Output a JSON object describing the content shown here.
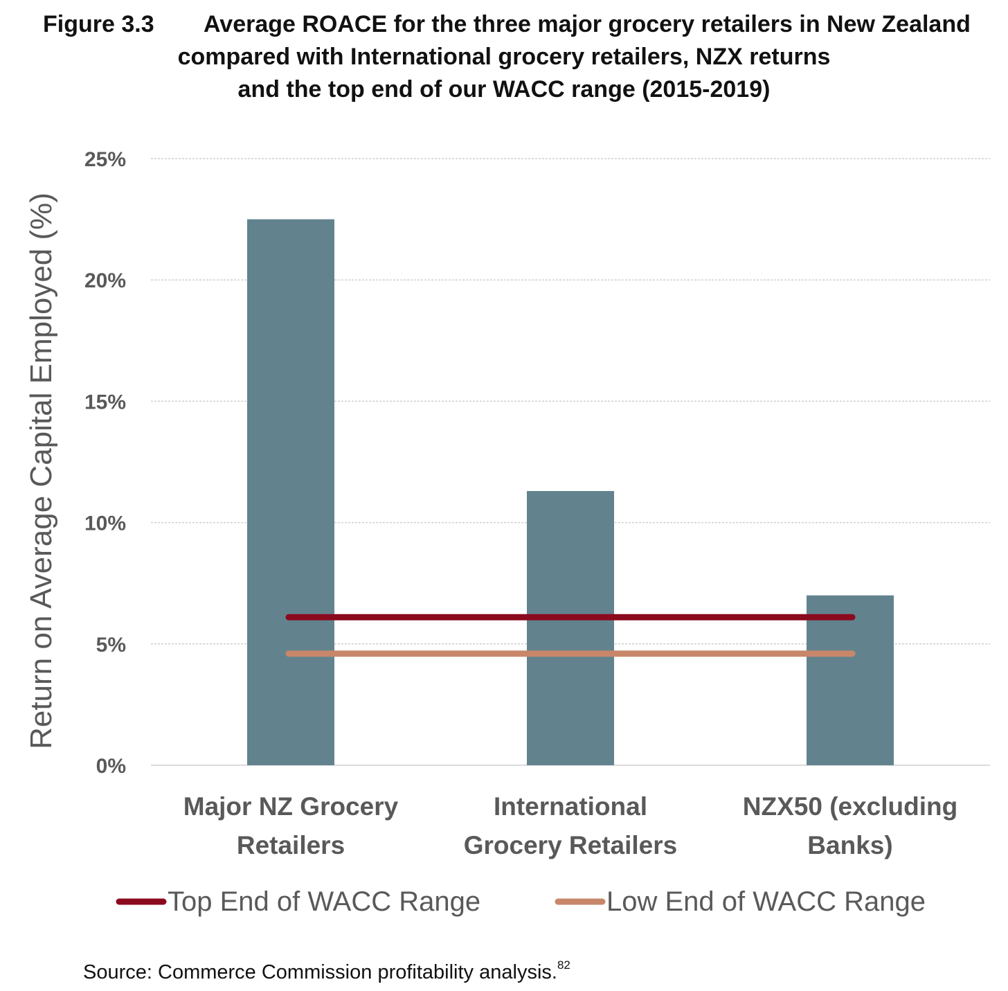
{
  "figure": {
    "number": "Figure 3.3",
    "title_line1": "Average ROACE for the three major grocery retailers in New Zealand",
    "title_line2": "compared with International grocery retailers, NZX returns",
    "title_line3": "and the top end of our WACC range (2015-2019)",
    "source": "Source: Commerce Commission profitability analysis.",
    "source_footnote": "82"
  },
  "colors": {
    "bar": "#62838e",
    "top_wacc": "#8b0a1e",
    "low_wacc": "#c8876a",
    "grid": "#cfcfcf",
    "axis_text": "#595959"
  },
  "chart_data": {
    "type": "bar",
    "title": "Average ROACE for the three major grocery retailers in New Zealand compared with International grocery retailers, NZX returns and the top end of our WACC range (2015-2019)",
    "categories": [
      [
        "Major NZ Grocery",
        "Retailers"
      ],
      [
        "International",
        "Grocery Retailers"
      ],
      [
        "NZX50 (excluding",
        "Banks)"
      ]
    ],
    "values": [
      22.5,
      11.3,
      7.0
    ],
    "reference_lines": [
      {
        "name": "Top End of WACC Range",
        "value": 6.1,
        "color": "#8b0a1e"
      },
      {
        "name": "Low End of WACC Range",
        "value": 4.6,
        "color": "#c8876a"
      }
    ],
    "xlabel": "",
    "ylabel": "Return on Average Capital Employed (%)",
    "ylim": [
      0,
      25
    ],
    "yticks": [
      0,
      5,
      10,
      15,
      20,
      25
    ],
    "ytick_labels": [
      "0%",
      "5%",
      "10%",
      "15%",
      "20%",
      "25%"
    ],
    "grid": true,
    "legend_position": "bottom"
  }
}
